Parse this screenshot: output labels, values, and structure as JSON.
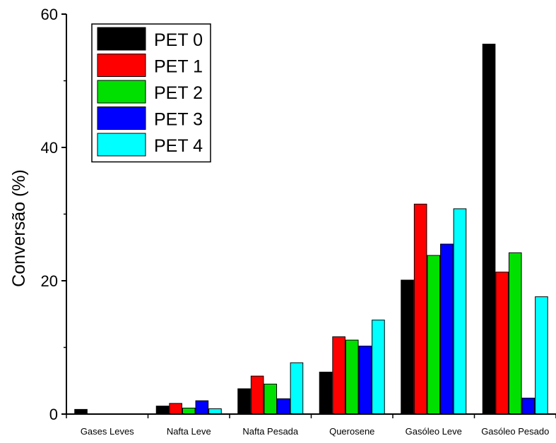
{
  "chart_data": {
    "type": "bar",
    "title": "",
    "xlabel": "",
    "ylabel": "Conversão (%)",
    "ylim": [
      0,
      60
    ],
    "yticks": [
      0,
      20,
      40,
      60
    ],
    "grid": false,
    "legend_position": "top-left",
    "categories": [
      "Gases Leves",
      "Nafta Leve",
      "Nafta Pesada",
      "Querosene",
      "Gasóleo Leve",
      "Gasóleo Pesado"
    ],
    "series": [
      {
        "name": "PET 0",
        "color": "#000000",
        "values": [
          0.7,
          1.2,
          3.8,
          6.3,
          20.1,
          55.5
        ]
      },
      {
        "name": "PET 1",
        "color": "#ff0000",
        "values": [
          0.0,
          1.6,
          5.7,
          11.6,
          31.5,
          21.3
        ]
      },
      {
        "name": "PET 2",
        "color": "#00e000",
        "values": [
          0.0,
          0.9,
          4.5,
          11.1,
          23.8,
          24.2
        ]
      },
      {
        "name": "PET 3",
        "color": "#0000ff",
        "values": [
          0.0,
          2.0,
          2.3,
          10.2,
          25.5,
          2.4
        ]
      },
      {
        "name": "PET 4",
        "color": "#00ffff",
        "values": [
          0.0,
          0.8,
          7.7,
          14.1,
          30.8,
          17.6
        ]
      }
    ]
  }
}
